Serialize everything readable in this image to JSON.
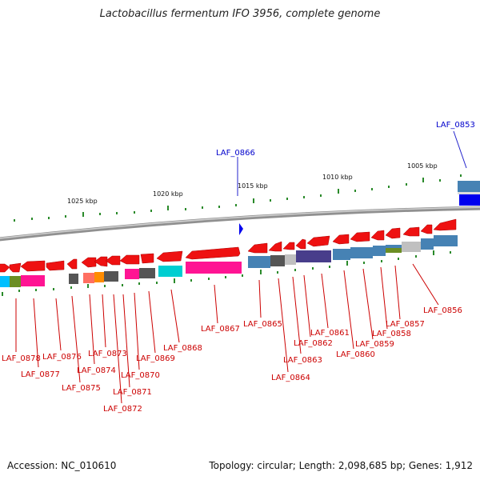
{
  "title": "Lactobacillus fermentum IFO 3956, complete genome",
  "footer": {
    "accession": "Accession: NC_010610",
    "topology": "Topology: circular; Length: 2,098,685 bp; Genes: 1,912"
  },
  "scale_labels": [
    "1025 kbp",
    "1020 kbp",
    "1015 kbp",
    "1010 kbp",
    "1005 kbp"
  ],
  "highlighted_genes": [
    "LAF_0866",
    "LAF_0853"
  ],
  "gene_labels": [
    "LAF_0878",
    "LAF_0877",
    "LAF_0876",
    "LAF_0875",
    "LAF_0874",
    "LAF_0873",
    "LAF_0872",
    "LAF_0871",
    "LAF_0870",
    "LAF_0869",
    "LAF_0868",
    "LAF_0867",
    "LAF_0865",
    "LAF_0864",
    "LAF_0863",
    "LAF_0862",
    "LAF_0861",
    "LAF_0860",
    "LAF_0859",
    "LAF_0858",
    "LAF_0857",
    "LAF_0856"
  ],
  "colors": {
    "gene_forward": "#ee1111",
    "highlight": "#0000ee",
    "leader_red": "#cc0000",
    "backbone": "#888888",
    "tick": "#2a8a2a"
  }
}
